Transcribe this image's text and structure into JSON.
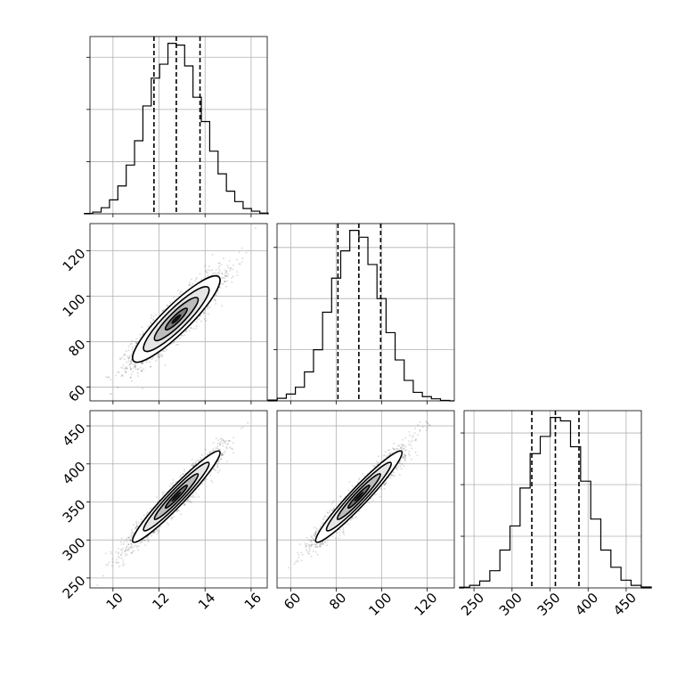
{
  "chart_data": {
    "type": "corner",
    "variables": [
      {
        "ticks": [
          10,
          12,
          14,
          16
        ],
        "range": [
          9.0,
          16.7
        ],
        "mean": 12.75,
        "sd": 0.95,
        "quantiles": [
          11.78,
          12.75,
          13.78
        ],
        "hist_counts": [
          0.2,
          1.0,
          3.5,
          8.0,
          16.0,
          28.0,
          42.0,
          62.0,
          78.0,
          86.0,
          98.0,
          97.0,
          85.0,
          67.0,
          53.0,
          36.0,
          23.0,
          13.0,
          7.0,
          3.0,
          1.5,
          0.4
        ]
      },
      {
        "ticks": [
          60,
          80,
          100,
          120
        ],
        "range": [
          54,
          132
        ],
        "mean": 90.0,
        "sd": 9.5,
        "quantiles": [
          80.8,
          90.0,
          99.6
        ],
        "hist_counts": [
          0.5,
          1.5,
          4.0,
          8.0,
          17.0,
          30.0,
          52.0,
          72.0,
          88.0,
          100.0,
          96.0,
          80.0,
          60.0,
          40.0,
          24.0,
          12.0,
          5.0,
          2.5,
          1.2,
          0.3
        ]
      },
      {
        "ticks": [
          250,
          300,
          350,
          400,
          450
        ],
        "range": [
          237,
          470
        ],
        "mean": 357.0,
        "sd": 30.0,
        "quantiles": [
          326.0,
          357.0,
          388.0
        ],
        "hist_counts": [
          0.4,
          1.5,
          4.0,
          10.0,
          22.0,
          36.0,
          58.0,
          78.0,
          88.0,
          99.0,
          97.0,
          82.0,
          62.0,
          40.0,
          22.0,
          12.0,
          4.5,
          1.5,
          0.5
        ]
      }
    ],
    "correlations": {
      "0-1": 0.9,
      "0-2": 0.96,
      "1-2": 0.96
    },
    "contour_levels_sigma": [
      0.5,
      1.0,
      1.5,
      2.0
    ],
    "scatter_points_per_panel": 2500,
    "grid": true
  }
}
